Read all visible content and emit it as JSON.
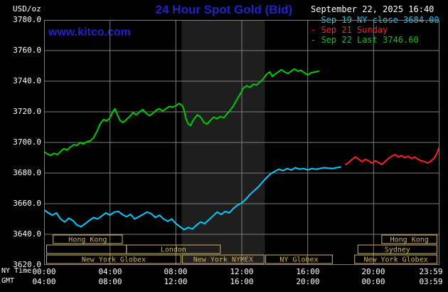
{
  "colors": {
    "background": "#000000",
    "grid": "#7d7d7d",
    "band": "#1e1e1e",
    "title_blue": "#2222cc",
    "white": "#ffffff",
    "tan": "#ccb266",
    "cyan": "#00ccff",
    "red": "#ff2020",
    "green": "#00cc00"
  },
  "header": {
    "units": "USD/oz",
    "title": "24 Hour Spot Gold (Bid)",
    "datetime": "September 22, 2025 16:40",
    "watermark": "www.kitco.com"
  },
  "legend": [
    {
      "marker": "-",
      "text": "Sep 19 NY close 3684.00",
      "color": "#00ccff"
    },
    {
      "marker": "-",
      "text": "Sep 21 Sunday",
      "color": "#ff2020"
    },
    {
      "marker": "-",
      "text": "Sep 22 Last 3746.60",
      "color": "#00cc00"
    }
  ],
  "axes": {
    "ny_label": "NY Time",
    "gmt_label": "GMT",
    "y_ticks": [
      "3780.0",
      "3760.0",
      "3740.0",
      "3720.0",
      "3700.0",
      "3680.0",
      "3660.0",
      "3640.0",
      "3620.0"
    ],
    "x_ticks_ny": [
      "00:00",
      "04:00",
      "08:00",
      "12:00",
      "16:00",
      "20:00",
      "23:59"
    ],
    "x_ticks_gmt": [
      "04:00",
      "08:00",
      "12:00",
      "16:00",
      "20:00",
      "00:00",
      "03:59"
    ]
  },
  "sessions": [
    {
      "row": 0,
      "start": 0.55,
      "end": 4.75,
      "label": "Hong Kong"
    },
    {
      "row": 0,
      "start": 20.5,
      "end": 23.85,
      "label": "Hong Kong"
    },
    {
      "row": 1,
      "start": 0.15,
      "end": 5.0,
      "label": ""
    },
    {
      "row": 1,
      "start": 5.0,
      "end": 10.7,
      "label": "London"
    },
    {
      "row": 1,
      "start": 19.05,
      "end": 23.85,
      "label": "Sydney"
    },
    {
      "row": 2,
      "start": 0.15,
      "end": 8.3,
      "label": "New York Globex"
    },
    {
      "row": 2,
      "start": 8.4,
      "end": 13.35,
      "label": "New York NYMEX"
    },
    {
      "row": 2,
      "start": 13.45,
      "end": 17.5,
      "label": "NY Globex"
    },
    {
      "row": 2,
      "start": 18.85,
      "end": 23.85,
      "label": "New York Globex"
    }
  ],
  "chart_data": {
    "type": "line",
    "title": "24 Hour Spot Gold (Bid)",
    "ylabel": "USD/oz",
    "xlabel": "NY Time (hours)",
    "ylim": [
      3620,
      3780
    ],
    "y_step": 20,
    "x_range": [
      0,
      24
    ],
    "x_step": 4,
    "grid": true,
    "legend_position": "top-right",
    "shaded_band_hours": [
      8.35,
      13.4
    ],
    "series": [
      {
        "name": "Sep 19 NY close",
        "color": "#00ccff",
        "last_value": 3684.0,
        "points": [
          [
            0,
            3656
          ],
          [
            0.25,
            3654
          ],
          [
            0.5,
            3652.5
          ],
          [
            0.75,
            3654
          ],
          [
            1,
            3650
          ],
          [
            1.25,
            3648
          ],
          [
            1.5,
            3650.5
          ],
          [
            1.75,
            3649
          ],
          [
            2,
            3646
          ],
          [
            2.25,
            3645
          ],
          [
            2.5,
            3647
          ],
          [
            2.75,
            3649
          ],
          [
            3,
            3651
          ],
          [
            3.25,
            3650
          ],
          [
            3.5,
            3652
          ],
          [
            3.75,
            3654
          ],
          [
            4,
            3652.5
          ],
          [
            4.25,
            3654.5
          ],
          [
            4.5,
            3655
          ],
          [
            4.75,
            3653
          ],
          [
            5,
            3651.5
          ],
          [
            5.25,
            3653
          ],
          [
            5.5,
            3650
          ],
          [
            5.75,
            3651.5
          ],
          [
            6,
            3653
          ],
          [
            6.25,
            3654.5
          ],
          [
            6.5,
            3653.5
          ],
          [
            6.75,
            3651
          ],
          [
            7,
            3652.5
          ],
          [
            7.25,
            3650
          ],
          [
            7.5,
            3648.5
          ],
          [
            7.75,
            3650
          ],
          [
            8,
            3647
          ],
          [
            8.25,
            3645
          ],
          [
            8.5,
            3643
          ],
          [
            8.75,
            3644.5
          ],
          [
            9,
            3643.5
          ],
          [
            9.25,
            3646
          ],
          [
            9.5,
            3648
          ],
          [
            9.75,
            3647
          ],
          [
            10,
            3649.5
          ],
          [
            10.25,
            3652
          ],
          [
            10.5,
            3654.5
          ],
          [
            10.75,
            3653
          ],
          [
            11,
            3655
          ],
          [
            11.25,
            3654
          ],
          [
            11.5,
            3657
          ],
          [
            11.75,
            3659
          ],
          [
            12,
            3660.5
          ],
          [
            12.25,
            3663
          ],
          [
            12.5,
            3666
          ],
          [
            12.75,
            3668.5
          ],
          [
            13,
            3671
          ],
          [
            13.25,
            3674
          ],
          [
            13.5,
            3677
          ],
          [
            13.75,
            3679.5
          ],
          [
            14,
            3681
          ],
          [
            14.25,
            3682.5
          ],
          [
            14.5,
            3681.5
          ],
          [
            14.75,
            3683
          ],
          [
            15,
            3682
          ],
          [
            15.25,
            3683.5
          ],
          [
            15.5,
            3682.5
          ],
          [
            15.75,
            3683
          ],
          [
            16,
            3682
          ],
          [
            16.25,
            3683
          ],
          [
            16.5,
            3682.5
          ],
          [
            17,
            3683.5
          ],
          [
            17.5,
            3683
          ],
          [
            18,
            3684
          ]
        ]
      },
      {
        "name": "Sep 21 Sunday",
        "color": "#ff2020",
        "points": [
          [
            18.3,
            3685.5
          ],
          [
            18.5,
            3687
          ],
          [
            18.7,
            3689
          ],
          [
            18.9,
            3690.5
          ],
          [
            19.1,
            3689
          ],
          [
            19.3,
            3687.5
          ],
          [
            19.5,
            3689
          ],
          [
            19.7,
            3688
          ],
          [
            19.9,
            3686.5
          ],
          [
            20.1,
            3688
          ],
          [
            20.3,
            3687
          ],
          [
            20.5,
            3685.5
          ],
          [
            20.7,
            3687.5
          ],
          [
            20.9,
            3689.5
          ],
          [
            21.1,
            3691
          ],
          [
            21.3,
            3692
          ],
          [
            21.5,
            3690.5
          ],
          [
            21.7,
            3691.5
          ],
          [
            21.9,
            3690
          ],
          [
            22.1,
            3691
          ],
          [
            22.3,
            3689.5
          ],
          [
            22.5,
            3690.5
          ],
          [
            22.7,
            3689
          ],
          [
            22.9,
            3688
          ],
          [
            23.1,
            3687.5
          ],
          [
            23.3,
            3686.5
          ],
          [
            23.5,
            3688
          ],
          [
            23.7,
            3690
          ],
          [
            23.85,
            3693
          ],
          [
            23.98,
            3696.5
          ]
        ]
      },
      {
        "name": "Sep 22 Last",
        "color": "#00cc00",
        "last_value": 3746.6,
        "points": [
          [
            0,
            3694
          ],
          [
            0.2,
            3692.5
          ],
          [
            0.4,
            3691.5
          ],
          [
            0.6,
            3693
          ],
          [
            0.8,
            3692
          ],
          [
            1,
            3694
          ],
          [
            1.2,
            3696
          ],
          [
            1.4,
            3695
          ],
          [
            1.6,
            3697
          ],
          [
            1.8,
            3698.5
          ],
          [
            2,
            3698
          ],
          [
            2.2,
            3700
          ],
          [
            2.4,
            3699
          ],
          [
            2.6,
            3700.5
          ],
          [
            2.8,
            3701
          ],
          [
            3,
            3703
          ],
          [
            3.2,
            3707
          ],
          [
            3.4,
            3712
          ],
          [
            3.6,
            3715
          ],
          [
            3.8,
            3714
          ],
          [
            4,
            3716
          ],
          [
            4.15,
            3719.5
          ],
          [
            4.3,
            3722
          ],
          [
            4.45,
            3718
          ],
          [
            4.6,
            3714.5
          ],
          [
            4.8,
            3713
          ],
          [
            5,
            3715
          ],
          [
            5.2,
            3717
          ],
          [
            5.4,
            3719.5
          ],
          [
            5.6,
            3718
          ],
          [
            5.8,
            3720
          ],
          [
            6,
            3721.5
          ],
          [
            6.2,
            3719
          ],
          [
            6.4,
            3717.5
          ],
          [
            6.6,
            3719
          ],
          [
            6.8,
            3721
          ],
          [
            7,
            3722
          ],
          [
            7.2,
            3720.5
          ],
          [
            7.4,
            3722
          ],
          [
            7.6,
            3723.5
          ],
          [
            7.8,
            3723
          ],
          [
            8,
            3724
          ],
          [
            8.2,
            3725.5
          ],
          [
            8.4,
            3724
          ],
          [
            8.5,
            3721
          ],
          [
            8.6,
            3716
          ],
          [
            8.75,
            3712
          ],
          [
            8.9,
            3711
          ],
          [
            9,
            3713.5
          ],
          [
            9.15,
            3716
          ],
          [
            9.3,
            3718
          ],
          [
            9.5,
            3716.5
          ],
          [
            9.7,
            3713
          ],
          [
            9.9,
            3712
          ],
          [
            10.1,
            3714.5
          ],
          [
            10.3,
            3716.5
          ],
          [
            10.5,
            3715.5
          ],
          [
            10.7,
            3717
          ],
          [
            10.9,
            3716
          ],
          [
            11.1,
            3718.5
          ],
          [
            11.3,
            3721
          ],
          [
            11.5,
            3724
          ],
          [
            11.7,
            3728
          ],
          [
            11.9,
            3731.5
          ],
          [
            12.1,
            3735.5
          ],
          [
            12.3,
            3737
          ],
          [
            12.5,
            3736
          ],
          [
            12.7,
            3738
          ],
          [
            12.9,
            3737.5
          ],
          [
            13.1,
            3739.5
          ],
          [
            13.3,
            3741.5
          ],
          [
            13.5,
            3744.5
          ],
          [
            13.7,
            3746
          ],
          [
            13.85,
            3743
          ],
          [
            14,
            3744.5
          ],
          [
            14.2,
            3746
          ],
          [
            14.4,
            3747.5
          ],
          [
            14.6,
            3746
          ],
          [
            14.8,
            3745
          ],
          [
            15,
            3746.5
          ],
          [
            15.2,
            3748
          ],
          [
            15.4,
            3746.5
          ],
          [
            15.6,
            3747
          ],
          [
            15.8,
            3745.5
          ],
          [
            16,
            3744
          ],
          [
            16.2,
            3745.5
          ],
          [
            16.45,
            3746
          ],
          [
            16.67,
            3746.6
          ]
        ]
      }
    ]
  }
}
